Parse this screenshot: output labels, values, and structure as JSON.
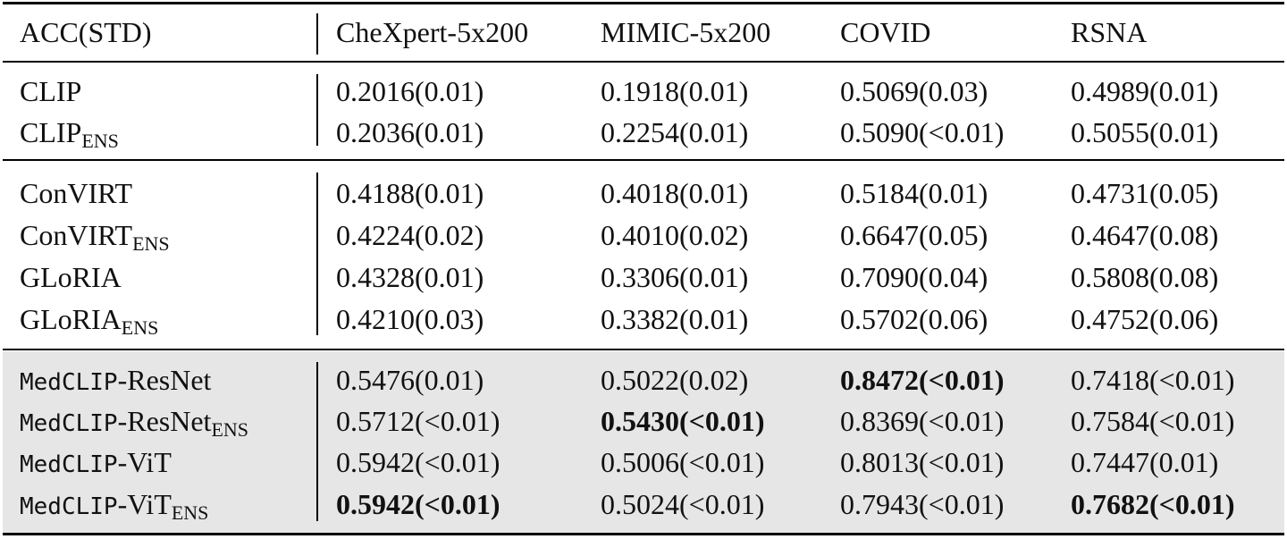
{
  "table": {
    "header": [
      "ACC(STD)",
      "CheXpert-5x200",
      "MIMIC-5x200",
      "COVID",
      "RSNA"
    ],
    "groups": [
      {
        "shaded": false,
        "rows": [
          {
            "method": "CLIP",
            "values": [
              "0.2016(0.01)",
              "0.1918(0.01)",
              "0.5069(0.03)",
              "0.4989(0.01)"
            ]
          },
          {
            "method": "CLIP",
            "subscript": "ENS",
            "values": [
              "0.2036(0.01)",
              "0.2254(0.01)",
              "0.5090(<0.01)",
              "0.5055(0.01)"
            ]
          }
        ]
      },
      {
        "shaded": false,
        "rows": [
          {
            "method": "ConVIRT",
            "values": [
              "0.4188(0.01)",
              "0.4018(0.01)",
              "0.5184(0.01)",
              "0.4731(0.05)"
            ]
          },
          {
            "method": "ConVIRT",
            "subscript": "ENS",
            "values": [
              "0.4224(0.02)",
              "0.4010(0.02)",
              "0.6647(0.05)",
              "0.4647(0.08)"
            ]
          },
          {
            "method": "GLoRIA",
            "values": [
              "0.4328(0.01)",
              "0.3306(0.01)",
              "0.7090(0.04)",
              "0.5808(0.08)"
            ]
          },
          {
            "method": "GLoRIA",
            "subscript": "ENS",
            "values": [
              "0.4210(0.03)",
              "0.3382(0.01)",
              "0.5702(0.06)",
              "0.4752(0.06)"
            ]
          }
        ]
      },
      {
        "shaded": true,
        "rows": [
          {
            "method_mono": "MedCLIP",
            "method": "-ResNet",
            "values": [
              "0.5476(0.01)",
              "0.5022(0.02)",
              "0.8472(<0.01)",
              "0.7418(<0.01)"
            ],
            "bold": [
              2
            ]
          },
          {
            "method_mono": "MedCLIP",
            "method": "-ResNet",
            "subscript": "ENS",
            "values": [
              "0.5712(<0.01)",
              "0.5430(<0.01)",
              "0.8369(<0.01)",
              "0.7584(<0.01)"
            ],
            "bold": [
              1
            ]
          },
          {
            "method_mono": "MedCLIP",
            "method": "-ViT",
            "values": [
              "0.5942(<0.01)",
              "0.5006(<0.01)",
              "0.8013(<0.01)",
              "0.7447(0.01)"
            ]
          },
          {
            "method_mono": "MedCLIP",
            "method": "-ViT",
            "subscript": "ENS",
            "values": [
              "0.5942(<0.01)",
              "0.5024(<0.01)",
              "0.7943(<0.01)",
              "0.7682(<0.01)"
            ],
            "bold": [
              0,
              3
            ]
          }
        ]
      }
    ]
  }
}
